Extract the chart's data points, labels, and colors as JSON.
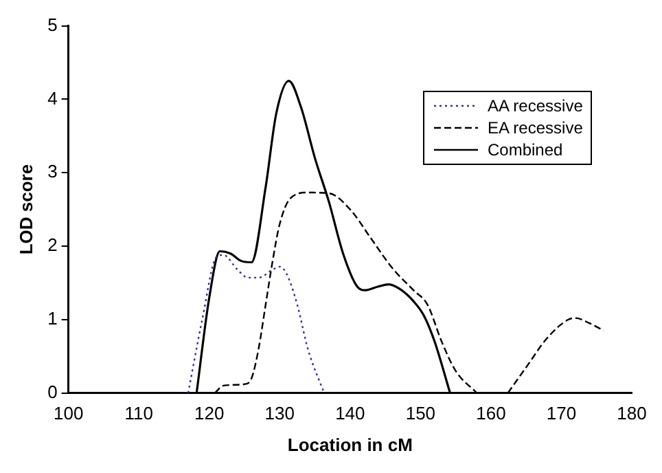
{
  "chart_data": {
    "type": "line",
    "xlabel": "Location in cM",
    "ylabel": "LOD score",
    "xlim": [
      100,
      180
    ],
    "xticks": [
      100,
      110,
      120,
      130,
      140,
      150,
      160,
      170,
      180
    ],
    "ylim": [
      0,
      5
    ],
    "yticks": [
      0,
      1,
      2,
      3,
      4,
      5
    ],
    "grid": false,
    "legend": "top right",
    "marker": "none",
    "series": [
      {
        "name": "AA recessive",
        "color": "#333399",
        "line_style": "dotted",
        "x": [
          117,
          119,
          121,
          122,
          124,
          125.5,
          127,
          129,
          130,
          131,
          132.5,
          134,
          136.3
        ],
        "values": [
          0,
          1.0,
          1.85,
          1.88,
          1.68,
          1.57,
          1.57,
          1.68,
          1.72,
          1.62,
          1.2,
          0.6,
          0
        ]
      },
      {
        "name": "EA recessive",
        "color": "#000000",
        "line_style": "dashed",
        "x": [
          120.8,
          122,
          125,
          126,
          127,
          128,
          129,
          130,
          131.5,
          134,
          137,
          140,
          143,
          146,
          149,
          151,
          153,
          155,
          158,
          160,
          162.4,
          165,
          168,
          171,
          172,
          174,
          176
        ],
        "values": [
          0,
          0.1,
          0.12,
          0.2,
          0.6,
          1.2,
          1.8,
          2.3,
          2.65,
          2.73,
          2.72,
          2.5,
          2.1,
          1.7,
          1.4,
          1.2,
          0.7,
          0.3,
          0,
          null,
          0,
          0.35,
          0.75,
          1.0,
          1.02,
          0.95,
          0.85
        ]
      },
      {
        "name": "Combined",
        "color": "#000000",
        "line_style": "solid",
        "x": [
          118.2,
          120,
          121.5,
          123,
          124.5,
          126,
          128,
          129.5,
          131.3,
          133,
          135,
          137,
          139,
          141,
          142.2,
          144,
          145.5,
          147,
          149,
          150.5,
          152,
          154.2
        ],
        "values": [
          0,
          1.3,
          1.93,
          1.9,
          1.8,
          1.78,
          2.8,
          3.8,
          4.25,
          3.9,
          3.2,
          2.6,
          1.9,
          1.45,
          1.4,
          1.45,
          1.48,
          1.42,
          1.25,
          1.05,
          0.7,
          0
        ]
      }
    ]
  }
}
